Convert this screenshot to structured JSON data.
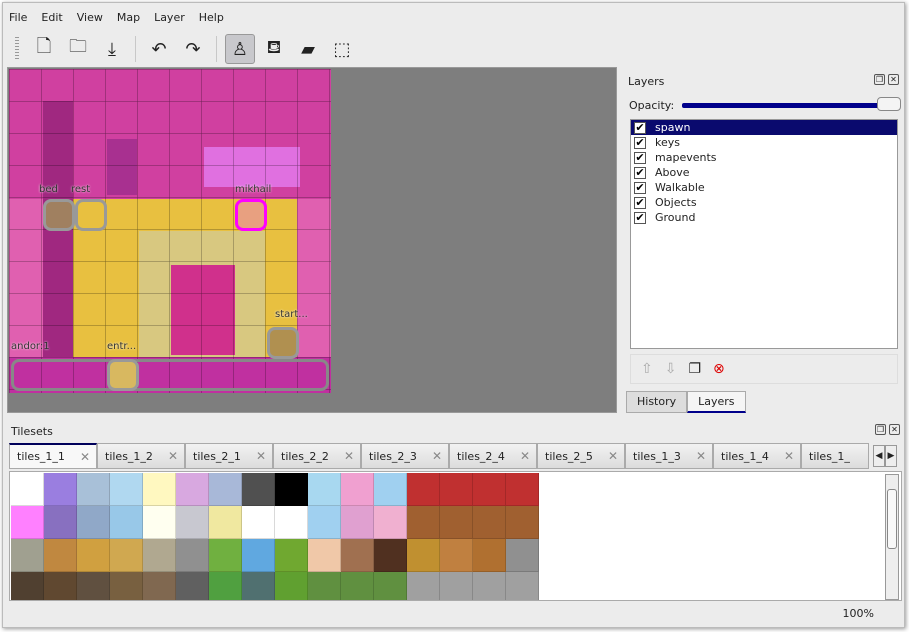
{
  "menu": [
    "File",
    "Edit",
    "View",
    "Map",
    "Layer",
    "Help"
  ],
  "toolbar": [
    {
      "name": "new-icon",
      "glyph": "🗋"
    },
    {
      "name": "open-icon",
      "glyph": "🗀"
    },
    {
      "name": "save-icon",
      "glyph": "⤓"
    },
    {
      "sep": true
    },
    {
      "name": "undo-icon",
      "glyph": "↶"
    },
    {
      "name": "redo-icon",
      "glyph": "↷"
    },
    {
      "sep": true
    },
    {
      "name": "stamp-brush-icon",
      "glyph": "♙",
      "active": true
    },
    {
      "name": "bucket-fill-icon",
      "glyph": "⛾"
    },
    {
      "name": "eraser-icon",
      "glyph": "▰"
    },
    {
      "name": "rect-select-icon",
      "glyph": "⬚"
    }
  ],
  "map": {
    "objects": [
      {
        "label": "bed"
      },
      {
        "label": "rest"
      },
      {
        "label": "mikhail"
      },
      {
        "label": "start..."
      },
      {
        "label": "andor:1"
      },
      {
        "label": "entr..."
      }
    ]
  },
  "layers_panel": {
    "title": "Layers",
    "opacity_label": "Opacity:",
    "opacity": 1.0,
    "layers": [
      {
        "name": "spawn",
        "visible": true,
        "selected": true
      },
      {
        "name": "keys",
        "visible": true
      },
      {
        "name": "mapevents",
        "visible": true
      },
      {
        "name": "Above",
        "visible": true
      },
      {
        "name": "Walkable",
        "visible": true
      },
      {
        "name": "Objects",
        "visible": true
      },
      {
        "name": "Ground",
        "visible": true
      }
    ],
    "actions": [
      "move-layer-up-icon",
      "move-layer-down-icon",
      "duplicate-layer-icon",
      "delete-layer-icon"
    ],
    "bottom_tabs": [
      "History",
      "Layers"
    ],
    "active_bottom_tab": "Layers"
  },
  "tilesets_panel": {
    "title": "Tilesets",
    "tabs": [
      "tiles_1_1",
      "tiles_1_2",
      "tiles_2_1",
      "tiles_2_2",
      "tiles_2_3",
      "tiles_2_4",
      "tiles_2_5",
      "tiles_1_3",
      "tiles_1_4",
      "tiles_1_"
    ],
    "active_tab": "tiles_1_1",
    "tile_colors": [
      [
        "#ffffff",
        "#9a7ee0",
        "#a8c0d8",
        "#b0d8f0",
        "#fff8c0",
        "#d8a8e0",
        "#a8b8d8",
        "#505050",
        "#000000",
        "#a8d8f0",
        "#f0a0d0",
        "#a0d0f0",
        "#c03030",
        "#c03030",
        "#c03030",
        "#c03030"
      ],
      [
        "#ff80ff",
        "#8870c0",
        "#90a8c8",
        "#98c8e8",
        "#fffff0",
        "#c8c8d0",
        "#f0e8a0",
        "#ffffff",
        "#ffffff",
        "#a0d0f0",
        "#e0a0d0",
        "#f0b0d0",
        "#a06030",
        "#a06030",
        "#a06030",
        "#a06030"
      ],
      [
        "#a0a090",
        "#c08840",
        "#d0a040",
        "#d0a850",
        "#b0a890",
        "#909090",
        "#70b040",
        "#60a8e0",
        "#70a830",
        "#f0c8a8",
        "#a07050",
        "#503020",
        "#c09030",
        "#c08040",
        "#b07030",
        "#909090"
      ],
      [
        "#504030",
        "#604830",
        "#605040",
        "#786040",
        "#806850",
        "#606060",
        "#50a040",
        "#507070",
        "#60a030",
        "#609040",
        "#609040",
        "#609040",
        "#a0a0a0",
        "#a0a0a0",
        "#a0a0a0",
        "#a0a0a0"
      ]
    ]
  },
  "status": {
    "zoom": "100%"
  }
}
